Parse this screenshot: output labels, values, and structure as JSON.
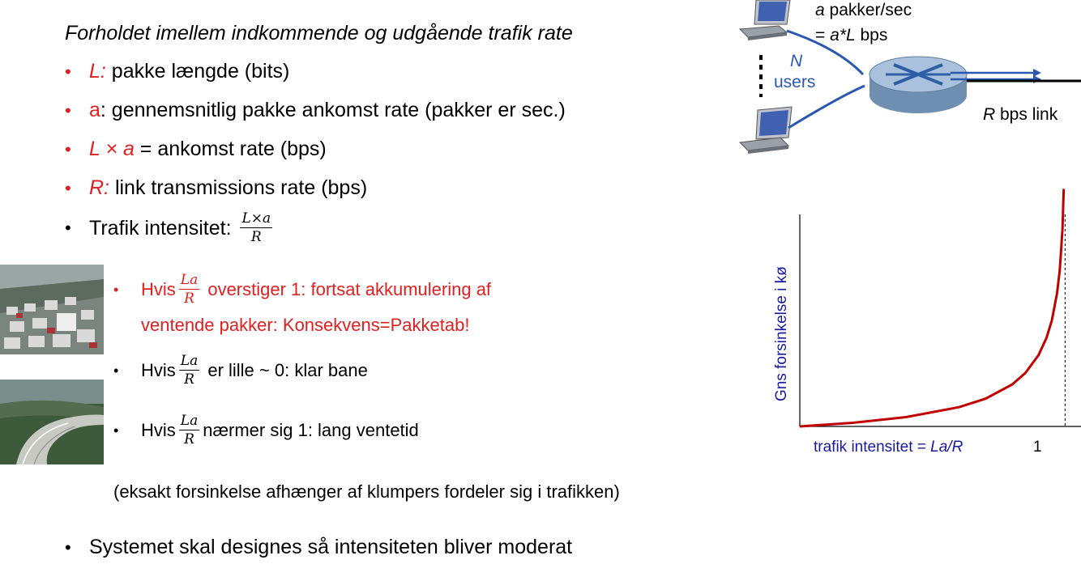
{
  "heading": "Forholdet imellem indkommende og udgående trafik rate",
  "bullets": [
    {
      "sym": "L:",
      "text": " pakke længde (bits)"
    },
    {
      "sym": "a",
      "text": ": gennemsnitlig pakke ankomst rate (pakker er sec.)"
    },
    {
      "sym": "L × a",
      "text": " = ankomst rate (bps)"
    },
    {
      "sym": "R:",
      "text": " link transmissions rate (bps)"
    }
  ],
  "intensity": {
    "label": "Trafik intensitet: ",
    "num": "L×a",
    "den": "R"
  },
  "cases": [
    {
      "pre": "Hvis",
      "num": "La",
      "den": "R",
      "line1": " overstiger 1: fortsat akkumulering af",
      "line2": "ventende pakker:  Konsekvens=Pakketab!"
    },
    {
      "pre": "Hvis",
      "num": "La",
      "den": "R",
      "text": " er lille ~ 0: klar bane"
    },
    {
      "pre": "Hvis",
      "num": "La",
      "den": "R",
      "text": "nærmer sig 1: lang ventetid"
    }
  ],
  "note": "(eksakt forsinkelse afhænger af klumpers fordeler sig i trafikken)",
  "final_bullet": "Systemet skal designes så intensiteten bliver moderat",
  "network": {
    "rate1_sym": "a",
    "rate1_text": " pakker/sec",
    "rate2_pre": "= ",
    "rate2_sym": "a*L",
    "rate2_text": " bps",
    "users_n": "N",
    "users_label": "users",
    "link_sym": "R",
    "link_text": " bps link"
  },
  "chart_data": {
    "type": "line",
    "ylabel": "Gns forsinkelse i kø",
    "xlabel_pre": "trafik intensitet = ",
    "xlabel_sym": "La/R",
    "xticks": [
      "1"
    ],
    "xlim": [
      0,
      1.06
    ],
    "series": [
      {
        "color": "#c00000",
        "x": [
          0,
          0.2,
          0.4,
          0.6,
          0.7,
          0.8,
          0.85,
          0.9,
          0.93,
          0.95,
          0.97,
          0.98,
          0.99,
          0.995
        ],
        "y": [
          0,
          0.0625,
          0.167,
          0.375,
          0.583,
          1.0,
          1.417,
          2.25,
          3.32,
          4.75,
          8.08,
          12.25,
          24.75,
          49.75
        ]
      }
    ],
    "colors": {
      "curve": "#c00000",
      "ylabel": "#1a1aa0",
      "xlabel": "#1a1aa0"
    }
  }
}
